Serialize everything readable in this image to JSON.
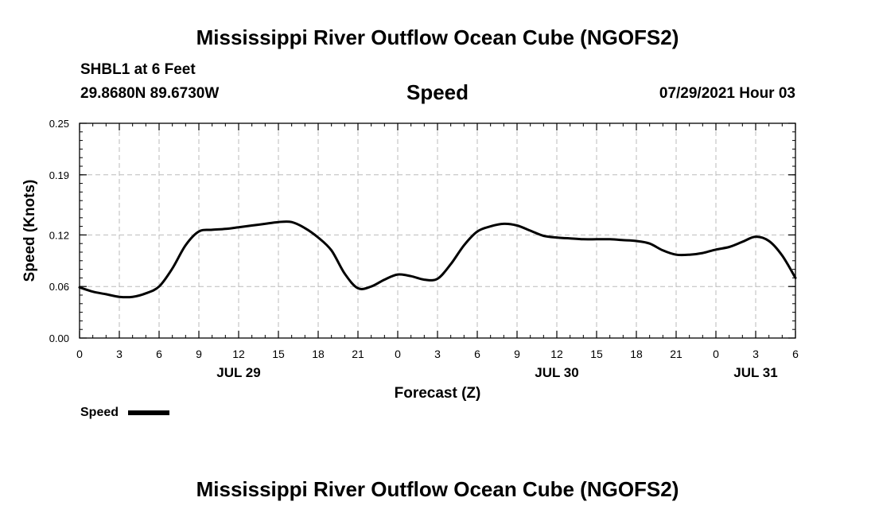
{
  "page": {
    "title_top": "Mississippi River Outflow Ocean Cube (NGOFS2)",
    "title_bottom": "Mississippi River Outflow Ocean Cube (NGOFS2)",
    "station": "SHBL1 at 6 Feet",
    "coords": "29.8680N  89.6730W",
    "variable": "Speed",
    "datetime": "07/29/2021 Hour 03"
  },
  "chart_data": {
    "type": "line",
    "title": "Speed",
    "xlabel": "Forecast (Z)",
    "ylabel": "Speed (Knots)",
    "xlim": [
      0,
      54
    ],
    "ylim": [
      0,
      0.25
    ],
    "y_ticks": [
      0.0,
      0.06,
      0.12,
      0.19,
      0.25
    ],
    "y_tick_labels": [
      "0.00",
      "0.06",
      "0.12",
      "0.19",
      "0.25"
    ],
    "x_ticks": [
      0,
      3,
      6,
      9,
      12,
      15,
      18,
      21,
      24,
      27,
      30,
      33,
      36,
      39,
      42,
      45,
      48,
      51,
      54
    ],
    "x_tick_labels": [
      "0",
      "3",
      "6",
      "9",
      "12",
      "15",
      "18",
      "21",
      "0",
      "3",
      "6",
      "9",
      "12",
      "15",
      "18",
      "21",
      "0",
      "3",
      "6"
    ],
    "date_labels": [
      {
        "label": "JUL 29",
        "x": 12
      },
      {
        "label": "JUL 30",
        "x": 36
      },
      {
        "label": "JUL 31",
        "x": 51
      }
    ],
    "grid": true,
    "legend": [
      {
        "name": "Speed",
        "position": "bottom-left"
      }
    ],
    "series": [
      {
        "name": "Speed",
        "color": "#000000",
        "x": [
          0,
          1,
          2,
          3,
          4,
          5,
          6,
          7,
          8,
          9,
          10,
          11,
          12,
          13,
          14,
          15,
          16,
          17,
          18,
          19,
          20,
          21,
          22,
          23,
          24,
          25,
          26,
          27,
          28,
          29,
          30,
          31,
          32,
          33,
          34,
          35,
          36,
          37,
          38,
          39,
          40,
          41,
          42,
          43,
          44,
          45,
          46,
          47,
          48,
          49,
          50,
          51,
          52,
          53,
          54
        ],
        "values": [
          0.059,
          0.054,
          0.051,
          0.048,
          0.048,
          0.052,
          0.06,
          0.081,
          0.108,
          0.124,
          0.126,
          0.127,
          0.129,
          0.131,
          0.133,
          0.135,
          0.135,
          0.128,
          0.117,
          0.102,
          0.075,
          0.058,
          0.06,
          0.068,
          0.074,
          0.072,
          0.068,
          0.069,
          0.086,
          0.108,
          0.124,
          0.13,
          0.133,
          0.131,
          0.125,
          0.119,
          0.117,
          0.116,
          0.115,
          0.115,
          0.115,
          0.114,
          0.113,
          0.11,
          0.102,
          0.097,
          0.097,
          0.099,
          0.103,
          0.106,
          0.112,
          0.118,
          0.113,
          0.096,
          0.07
        ]
      }
    ]
  }
}
